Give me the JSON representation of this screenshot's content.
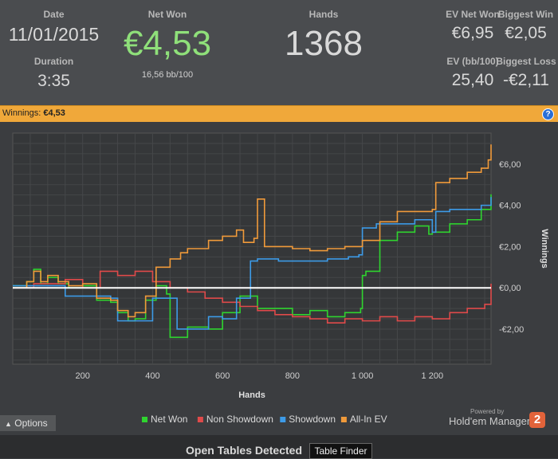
{
  "stats": {
    "date_label": "Date",
    "date": "11/01/2015",
    "duration_label": "Duration",
    "duration": "3:35",
    "netwon_label": "Net Won",
    "netwon": "€4,53",
    "bb100": "16,56 bb/100",
    "hands_label": "Hands",
    "hands": "1368",
    "evnet_label": "EV Net Won",
    "evnet": "€6,95",
    "biggestwin_label": "Biggest Win",
    "biggestwin": "€2,05",
    "evbb_label": "EV (bb/100)",
    "evbb": "25,40",
    "biggestloss_label": "Biggest Loss",
    "biggestloss": "-€2,11"
  },
  "winbar": {
    "label": "Winnings:",
    "value": "€4,53",
    "help": "?"
  },
  "footer": {
    "options": "Options",
    "powered": "Powered by",
    "brand": "Hold'em Manager",
    "brand_num": "2",
    "open_tables": "Open Tables Detected",
    "table_finder": "Table Finder"
  },
  "colors": {
    "net_won": "#2fd42f",
    "non_showdown": "#e04a4a",
    "showdown": "#3d9be8",
    "all_in_ev": "#f09a3a",
    "netwon_big": "#8fe07a"
  },
  "chart_data": {
    "type": "line",
    "xlabel": "Hands",
    "ylabel": "Winnings",
    "xlim": [
      0,
      1368
    ],
    "ylim": [
      -3.7,
      7.5
    ],
    "xticks": [
      200,
      400,
      600,
      800,
      1000,
      1200
    ],
    "xtick_labels": [
      "200",
      "400",
      "600",
      "800",
      "1 000",
      "1 200"
    ],
    "yticks": [
      -2,
      0,
      2,
      4,
      6
    ],
    "ytick_labels": [
      "-€2,00",
      "€0,00",
      "€2,00",
      "€4,00",
      "€6,00"
    ],
    "grid": true,
    "legend_position": "bottom",
    "series": [
      {
        "name": "Net Won",
        "color": "#2fd42f",
        "x": [
          0,
          40,
          60,
          80,
          100,
          130,
          160,
          200,
          240,
          280,
          300,
          330,
          350,
          380,
          410,
          440,
          450,
          500,
          560,
          600,
          650,
          700,
          750,
          800,
          850,
          900,
          950,
          995,
          1000,
          1010,
          1050,
          1100,
          1150,
          1190,
          1200,
          1250,
          1300,
          1340,
          1368
        ],
        "y": [
          0.1,
          0.3,
          0.9,
          0.2,
          0.5,
          0.2,
          0.0,
          0.1,
          -0.6,
          -0.7,
          -1.2,
          -1.6,
          -1.5,
          -0.6,
          0.1,
          -0.3,
          -2.4,
          -1.9,
          -2.0,
          -1.2,
          -0.4,
          -1.0,
          -1.0,
          -1.3,
          -1.1,
          -1.4,
          -1.2,
          -1.0,
          0.6,
          0.8,
          2.3,
          2.7,
          3.0,
          2.6,
          2.7,
          3.1,
          3.3,
          3.8,
          4.53
        ]
      },
      {
        "name": "Non Showdown",
        "color": "#e04a4a",
        "x": [
          0,
          60,
          100,
          150,
          200,
          250,
          300,
          350,
          400,
          450,
          500,
          550,
          600,
          650,
          700,
          750,
          800,
          850,
          900,
          950,
          1000,
          1050,
          1100,
          1150,
          1200,
          1250,
          1300,
          1350,
          1368
        ],
        "y": [
          0.0,
          0.2,
          0.2,
          0.4,
          0.0,
          0.8,
          0.6,
          0.8,
          0.3,
          0.0,
          -0.2,
          -0.5,
          -0.7,
          -0.9,
          -1.1,
          -1.3,
          -1.4,
          -1.5,
          -1.7,
          -1.5,
          -1.6,
          -1.4,
          -1.6,
          -1.4,
          -1.5,
          -1.2,
          -1.0,
          -0.8,
          0.2
        ]
      },
      {
        "name": "Showdown",
        "color": "#3d9be8",
        "x": [
          0,
          80,
          150,
          200,
          280,
          300,
          350,
          400,
          450,
          470,
          500,
          560,
          600,
          640,
          680,
          700,
          760,
          820,
          900,
          960,
          990,
          1000,
          1040,
          1100,
          1150,
          1200,
          1210,
          1250,
          1300,
          1340,
          1368
        ],
        "y": [
          0.1,
          0.1,
          -0.4,
          -0.4,
          -0.5,
          -1.6,
          -1.6,
          -0.5,
          -0.5,
          -2.0,
          -2.0,
          -1.4,
          -1.5,
          -0.5,
          1.3,
          1.4,
          1.3,
          1.3,
          1.4,
          1.5,
          1.6,
          2.9,
          3.1,
          3.1,
          3.3,
          2.7,
          3.7,
          3.8,
          3.8,
          4.0,
          4.4
        ]
      },
      {
        "name": "All-In EV",
        "color": "#f09a3a",
        "x": [
          0,
          40,
          60,
          80,
          100,
          130,
          160,
          200,
          240,
          280,
          300,
          330,
          350,
          380,
          410,
          450,
          480,
          500,
          560,
          600,
          640,
          660,
          690,
          700,
          720,
          750,
          800,
          850,
          900,
          950,
          1000,
          1050,
          1100,
          1150,
          1200,
          1210,
          1250,
          1300,
          1340,
          1360,
          1368
        ],
        "y": [
          0.0,
          0.3,
          0.8,
          0.3,
          0.6,
          0.3,
          0.1,
          0.2,
          -0.5,
          -0.6,
          -1.1,
          -1.4,
          -1.2,
          -0.4,
          1.0,
          1.4,
          1.7,
          1.9,
          2.3,
          2.5,
          2.8,
          2.2,
          2.4,
          4.3,
          2.0,
          2.0,
          1.9,
          1.8,
          1.9,
          2.0,
          2.3,
          3.2,
          3.7,
          3.7,
          3.8,
          5.1,
          5.3,
          5.6,
          5.8,
          6.2,
          6.95
        ]
      }
    ]
  }
}
